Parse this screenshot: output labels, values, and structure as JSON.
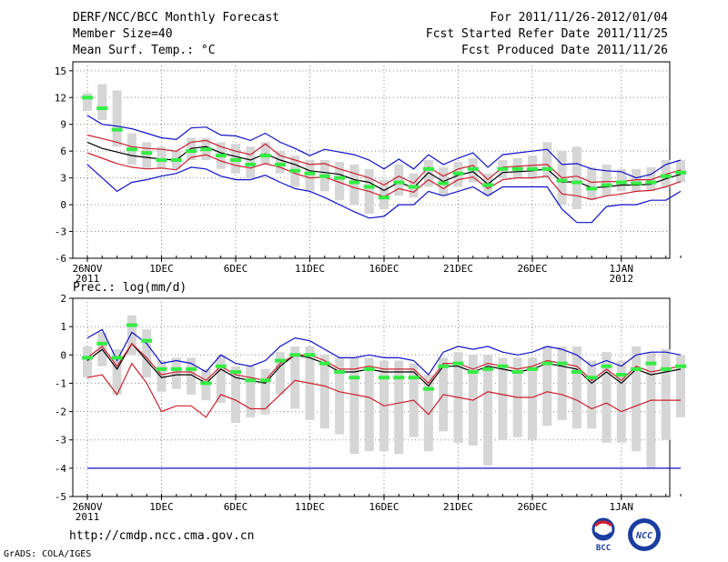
{
  "header": {
    "title": "DERF/NCC/BCC Monthly Forecast",
    "member_size": "Member Size=40",
    "variable": "Mean Surf. Temp.: °C",
    "forecast_period": "For 2011/11/26-2012/01/04",
    "fcst_started": "Fcst Started Refer Date 2011/11/25",
    "fcst_produced": "Fcst Produced Date 2011/11/26"
  },
  "precip_label": "Prec.: log(mm/d)",
  "footer": {
    "url": "http://cmdp.ncc.cma.gov.cn",
    "grads": "GrADS: COLA/IGES",
    "logo_bcc": "BCC",
    "logo_ncc": "NCC"
  },
  "colors": {
    "black": "#000000",
    "red": "#cc1f2e",
    "blue": "#1010c8",
    "green": "#33ee44",
    "box": "#d6d6d6",
    "grid": "#888888"
  },
  "chart_data": [
    {
      "type": "line",
      "title": "Mean Surf. Temp.: °C",
      "x_tick_labels": [
        "26NOV",
        "1DEC",
        "6DEC",
        "11DEC",
        "16DEC",
        "21DEC",
        "26DEC",
        "1JAN"
      ],
      "x_tick_days": [
        0,
        5,
        10,
        15,
        20,
        25,
        30,
        36
      ],
      "x_sub_labels": [
        {
          "day": 0,
          "label": "2011"
        },
        {
          "day": 36,
          "label": "2012"
        }
      ],
      "ylim": [
        -6,
        16
      ],
      "yticks": [
        -6,
        -3,
        0,
        3,
        6,
        9,
        12,
        15
      ],
      "grid": true,
      "series": [
        {
          "name": "ensemble mean",
          "color": "black",
          "values": [
            7.0,
            6.3,
            5.9,
            5.5,
            5.3,
            5.1,
            5.0,
            6.3,
            6.5,
            5.8,
            5.4,
            5.0,
            5.7,
            5.0,
            4.5,
            3.8,
            3.6,
            3.4,
            2.8,
            2.5,
            1.6,
            2.5,
            1.9,
            3.6,
            2.6,
            3.3,
            3.7,
            2.3,
            3.6,
            3.7,
            3.8,
            4.0,
            2.5,
            2.6,
            1.9,
            2.0,
            2.2,
            2.2,
            2.3,
            2.9,
            3.4
          ]
        },
        {
          "name": "upper red",
          "color": "red",
          "values": [
            7.8,
            7.4,
            7.0,
            6.5,
            6.3,
            6.2,
            6.0,
            7.0,
            7.2,
            6.5,
            6.0,
            5.6,
            6.8,
            5.5,
            5.0,
            4.5,
            4.6,
            4.0,
            3.5,
            3.0,
            2.2,
            3.2,
            2.4,
            4.2,
            3.2,
            4.0,
            4.4,
            2.8,
            4.2,
            4.3,
            4.4,
            4.5,
            3.0,
            3.2,
            2.5,
            2.6,
            2.6,
            2.8,
            2.8,
            3.4,
            3.9
          ]
        },
        {
          "name": "lower red",
          "color": "red",
          "values": [
            5.8,
            5.2,
            4.6,
            4.2,
            4.0,
            4.1,
            3.9,
            5.3,
            5.6,
            4.9,
            4.4,
            4.1,
            4.6,
            4.2,
            3.5,
            3.0,
            3.1,
            2.5,
            1.9,
            1.5,
            0.9,
            1.8,
            1.4,
            2.8,
            1.8,
            2.8,
            3.1,
            1.8,
            2.8,
            3.0,
            3.0,
            3.2,
            1.2,
            1.0,
            0.6,
            1.0,
            1.2,
            1.5,
            1.6,
            2.0,
            2.6
          ]
        },
        {
          "name": "upper blue",
          "color": "blue",
          "values": [
            10.0,
            9.0,
            8.8,
            8.5,
            8.0,
            7.5,
            7.3,
            8.6,
            8.7,
            7.8,
            7.7,
            7.2,
            8.0,
            7.0,
            6.3,
            5.5,
            6.2,
            5.9,
            5.6,
            5.0,
            4.0,
            5.1,
            4.0,
            5.6,
            4.5,
            5.2,
            5.8,
            4.2,
            5.6,
            5.8,
            6.0,
            6.2,
            4.5,
            4.6,
            4.0,
            3.8,
            3.7,
            3.0,
            3.4,
            4.5,
            5.0
          ]
        },
        {
          "name": "lower blue",
          "color": "blue",
          "values": [
            4.5,
            3.0,
            1.5,
            2.5,
            2.8,
            3.2,
            3.5,
            4.2,
            4.0,
            3.2,
            2.8,
            2.8,
            3.3,
            2.5,
            1.8,
            1.5,
            0.8,
            0.0,
            -0.8,
            -1.5,
            -1.3,
            0.0,
            0.0,
            1.5,
            1.0,
            1.5,
            2.0,
            1.0,
            2.0,
            2.0,
            2.0,
            2.0,
            -0.5,
            -2.0,
            -2.0,
            -0.2,
            0.0,
            0.0,
            0.5,
            0.5,
            1.5
          ]
        }
      ],
      "boxes": {
        "days": [
          0,
          1,
          2,
          3,
          4,
          5,
          6,
          7,
          8,
          9,
          10,
          11,
          12,
          13,
          14,
          15,
          16,
          17,
          18,
          19,
          20,
          21,
          22,
          23,
          24,
          25,
          26,
          27,
          28,
          29,
          30,
          31,
          32,
          33,
          34,
          35,
          36,
          37,
          38,
          39,
          40
        ],
        "high": [
          12.5,
          13.5,
          12.8,
          8.0,
          7.0,
          6.5,
          6.0,
          7.5,
          7.5,
          7.0,
          6.8,
          6.5,
          7.0,
          6.0,
          5.5,
          5.0,
          5.0,
          4.8,
          4.5,
          4.0,
          2.8,
          4.5,
          3.5,
          5.0,
          4.2,
          4.8,
          5.2,
          3.5,
          5.0,
          5.2,
          5.5,
          7.0,
          6.0,
          6.5,
          4.2,
          4.5,
          4.0,
          4.0,
          4.2,
          5.0,
          5.0
        ],
        "low": [
          10.5,
          9.5,
          6.5,
          4.5,
          4.0,
          4.0,
          4.0,
          5.0,
          5.0,
          4.0,
          3.5,
          3.0,
          4.5,
          3.5,
          2.0,
          1.5,
          1.5,
          0.5,
          0.0,
          -1.0,
          -0.5,
          1.0,
          0.8,
          2.0,
          1.0,
          2.0,
          2.5,
          1.0,
          3.0,
          3.0,
          3.0,
          3.0,
          0.0,
          -0.5,
          0.5,
          1.0,
          1.5,
          1.5,
          1.5,
          2.0,
          2.5
        ],
        "median": [
          12.0,
          10.8,
          8.4,
          6.2,
          5.8,
          5.0,
          5.0,
          6.0,
          6.2,
          5.5,
          5.0,
          4.5,
          5.5,
          4.5,
          3.8,
          3.5,
          3.2,
          3.0,
          2.5,
          2.0,
          0.8,
          2.5,
          2.0,
          4.0,
          2.4,
          3.5,
          4.0,
          2.2,
          4.0,
          4.0,
          4.0,
          4.0,
          2.7,
          2.5,
          1.8,
          2.2,
          2.5,
          2.4,
          2.5,
          3.2,
          3.6
        ]
      }
    },
    {
      "type": "line",
      "title": "Prec.: log(mm/d)",
      "x_tick_labels": [
        "26NOV",
        "1DEC",
        "6DEC",
        "11DEC",
        "16DEC",
        "21DEC",
        "26DEC",
        "1JAN"
      ],
      "x_tick_days": [
        0,
        5,
        10,
        15,
        20,
        25,
        30,
        36
      ],
      "x_sub_labels": [
        {
          "day": 0,
          "label": "2011"
        }
      ],
      "ylim": [
        -5,
        2
      ],
      "yticks": [
        -5,
        -4,
        -3,
        -2,
        -1,
        0,
        1,
        2
      ],
      "grid": true,
      "series": [
        {
          "name": "ensemble mean",
          "color": "black",
          "values": [
            -0.2,
            0.2,
            -0.5,
            0.4,
            -0.2,
            -0.8,
            -0.7,
            -0.7,
            -1.0,
            -0.5,
            -0.8,
            -0.9,
            -1.0,
            -0.4,
            0.0,
            -0.1,
            -0.3,
            -0.6,
            -0.6,
            -0.5,
            -0.6,
            -0.6,
            -0.6,
            -1.1,
            -0.4,
            -0.4,
            -0.6,
            -0.4,
            -0.5,
            -0.6,
            -0.5,
            -0.3,
            -0.4,
            -0.5,
            -1.0,
            -0.6,
            -1.0,
            -0.5,
            -0.7,
            -0.6,
            -0.5
          ]
        },
        {
          "name": "upper red",
          "color": "red",
          "values": [
            -0.1,
            0.3,
            -0.4,
            0.4,
            -0.1,
            -0.7,
            -0.6,
            -0.6,
            -0.9,
            -0.4,
            -0.7,
            -0.8,
            -0.9,
            -0.3,
            0.0,
            0.0,
            -0.2,
            -0.5,
            -0.5,
            -0.4,
            -0.5,
            -0.5,
            -0.5,
            -1.0,
            -0.3,
            -0.3,
            -0.5,
            -0.3,
            -0.4,
            -0.5,
            -0.4,
            -0.2,
            -0.3,
            -0.4,
            -0.9,
            -0.5,
            -0.9,
            -0.4,
            -0.6,
            -0.5,
            -0.4
          ]
        },
        {
          "name": "lower red",
          "color": "red",
          "values": [
            -0.8,
            -0.7,
            -1.4,
            -0.3,
            -1.0,
            -2.0,
            -1.8,
            -1.8,
            -2.2,
            -1.4,
            -1.6,
            -1.9,
            -1.9,
            -1.4,
            -0.9,
            -1.0,
            -1.1,
            -1.3,
            -1.4,
            -1.5,
            -1.8,
            -1.7,
            -1.6,
            -2.1,
            -1.4,
            -1.5,
            -1.6,
            -1.3,
            -1.4,
            -1.5,
            -1.5,
            -1.3,
            -1.4,
            -1.6,
            -1.9,
            -1.7,
            -2.0,
            -1.8,
            -1.6,
            -1.6,
            -1.6
          ]
        },
        {
          "name": "upper blue",
          "color": "blue",
          "values": [
            0.6,
            0.9,
            -0.2,
            0.8,
            0.4,
            -0.3,
            -0.2,
            -0.3,
            -0.6,
            0.0,
            -0.3,
            -0.4,
            -0.2,
            0.3,
            0.6,
            0.5,
            0.2,
            -0.1,
            -0.1,
            0.0,
            -0.1,
            -0.1,
            -0.2,
            -0.7,
            0.1,
            0.3,
            0.2,
            0.3,
            0.1,
            0.0,
            0.1,
            0.3,
            0.2,
            0.0,
            -0.4,
            -0.2,
            -0.4,
            0.0,
            0.1,
            0.1,
            0.0
          ]
        },
        {
          "name": "dry threshold",
          "color": "blue",
          "values": [
            -4,
            -4,
            -4,
            -4,
            -4,
            -4,
            -4,
            -4,
            -4,
            -4,
            -4,
            -4,
            -4,
            -4,
            -4,
            -4,
            -4,
            -4,
            -4,
            -4,
            -4,
            -4,
            -4,
            -4,
            -4,
            -4,
            -4,
            -4,
            -4,
            -4,
            -4,
            -4,
            -4,
            -4,
            -4,
            -4,
            -4,
            -4,
            -4,
            -4,
            -4
          ]
        }
      ],
      "boxes": {
        "days": [
          0,
          1,
          2,
          3,
          4,
          5,
          6,
          7,
          8,
          9,
          10,
          11,
          12,
          13,
          14,
          15,
          16,
          17,
          18,
          19,
          20,
          21,
          22,
          23,
          24,
          25,
          26,
          27,
          28,
          29,
          30,
          31,
          32,
          33,
          34,
          35,
          36,
          37,
          38,
          39,
          40
        ],
        "high": [
          0.3,
          0.8,
          0.2,
          1.4,
          0.9,
          -0.2,
          -0.1,
          -0.1,
          -0.5,
          0.0,
          -0.4,
          -0.4,
          -0.5,
          0.1,
          0.3,
          0.3,
          0.0,
          -0.1,
          -0.1,
          -0.1,
          -0.2,
          -0.2,
          -0.3,
          -0.7,
          -0.1,
          0.1,
          0.0,
          0.0,
          -0.1,
          -0.1,
          -0.1,
          0.3,
          0.3,
          0.3,
          -0.2,
          0.1,
          -0.2,
          0.3,
          0.1,
          0.2,
          0.0
        ],
        "low": [
          -0.8,
          -0.4,
          -1.4,
          0.0,
          -0.8,
          -1.3,
          -1.2,
          -1.4,
          -1.6,
          -1.7,
          -2.4,
          -2.2,
          -2.1,
          -1.4,
          -1.9,
          -2.3,
          -2.6,
          -2.8,
          -3.5,
          -3.4,
          -3.4,
          -3.5,
          -2.9,
          -3.4,
          -2.7,
          -3.1,
          -3.2,
          -3.9,
          -3.0,
          -2.9,
          -3.0,
          -2.5,
          -2.3,
          -2.6,
          -2.6,
          -3.1,
          -3.1,
          -3.4,
          -4.0,
          -3.0,
          -2.2
        ],
        "median": [
          -0.1,
          0.4,
          -0.1,
          1.05,
          0.5,
          -0.5,
          -0.5,
          -0.5,
          -1.0,
          -0.4,
          -0.6,
          -0.9,
          -0.9,
          -0.2,
          0.0,
          0.0,
          -0.3,
          -0.6,
          -0.8,
          -0.5,
          -0.8,
          -0.8,
          -0.8,
          -1.2,
          -0.4,
          -0.3,
          -0.6,
          -0.5,
          -0.4,
          -0.6,
          -0.5,
          -0.3,
          -0.3,
          -0.6,
          -0.8,
          -0.4,
          -0.7,
          -0.5,
          -0.3,
          -0.5,
          -0.4
        ]
      }
    }
  ]
}
